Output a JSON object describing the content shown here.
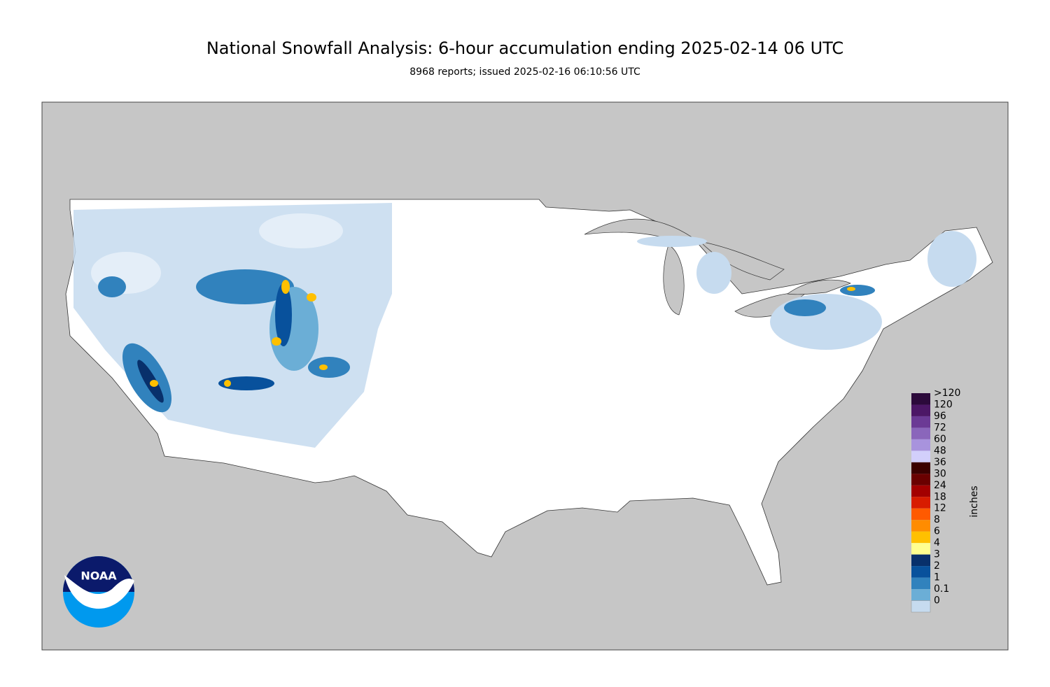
{
  "title": "National Snowfall Analysis: 6-hour accumulation ending 2025-02-14 06 UTC",
  "subtitle": "8968 reports; issued 2025-02-16 06:10:56 UTC",
  "logo": "NOAA",
  "legend": {
    "unit": "inches",
    "items": [
      {
        "label": ">120",
        "color": "#2c0a3b"
      },
      {
        "label": "120",
        "color": "#4c1766"
      },
      {
        "label": "96",
        "color": "#6b3a95"
      },
      {
        "label": "72",
        "color": "#8a66bb"
      },
      {
        "label": "60",
        "color": "#a893dd"
      },
      {
        "label": "48",
        "color": "#d2cffb"
      },
      {
        "label": "36",
        "color": "#3b0000"
      },
      {
        "label": "30",
        "color": "#6a0000"
      },
      {
        "label": "24",
        "color": "#a30000"
      },
      {
        "label": "18",
        "color": "#d81c00"
      },
      {
        "label": "12",
        "color": "#ff5a00"
      },
      {
        "label": "8",
        "color": "#ff8c00"
      },
      {
        "label": "6",
        "color": "#ffc000"
      },
      {
        "label": "4",
        "color": "#ffff90"
      },
      {
        "label": "3",
        "color": "#08306b"
      },
      {
        "label": "2",
        "color": "#08519c"
      },
      {
        "label": "1",
        "color": "#3182bd"
      },
      {
        "label": "0.1",
        "color": "#6baed6"
      },
      {
        "label": "0",
        "color": "#c6dbef"
      }
    ]
  }
}
